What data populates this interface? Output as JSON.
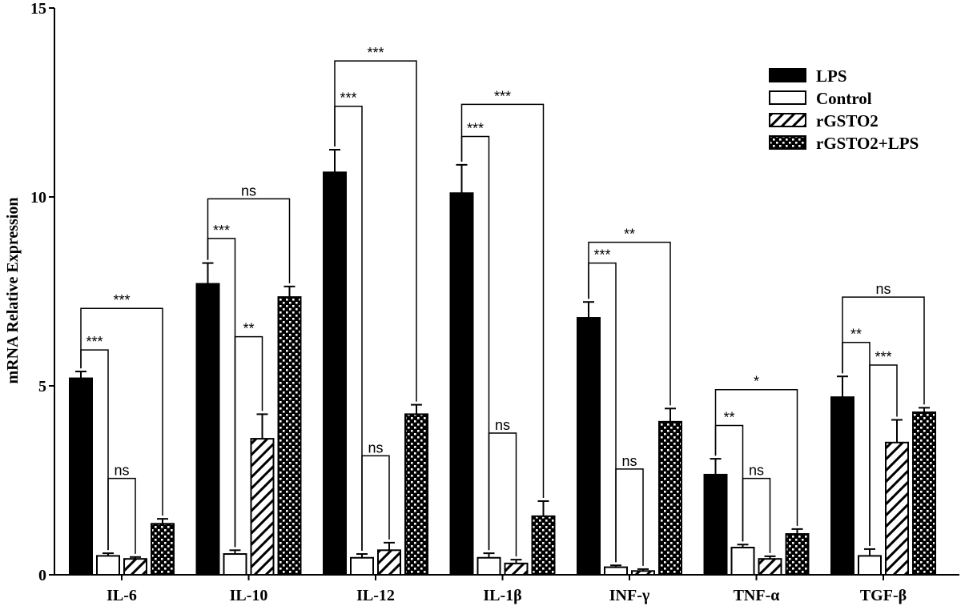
{
  "chart_data": {
    "type": "bar",
    "title": "",
    "xlabel": "",
    "ylabel": "mRNA Relative Expression",
    "ylim": [
      0,
      15
    ],
    "yticks": [
      0,
      5,
      10,
      15
    ],
    "grid": false,
    "legend_position": "top-right",
    "categories": [
      "IL-6",
      "IL-10",
      "IL-12",
      "IL-1β",
      "INF-γ",
      "TNF-α",
      "TGF-β"
    ],
    "series": [
      {
        "name": "LPS",
        "pattern": "solid",
        "color": "#000000",
        "values": [
          5.2,
          7.7,
          10.65,
          10.1,
          6.8,
          2.65,
          4.7
        ],
        "errors": [
          0.18,
          0.55,
          0.6,
          0.75,
          0.42,
          0.42,
          0.55
        ]
      },
      {
        "name": "Control",
        "pattern": "open",
        "color": "#ffffff",
        "values": [
          0.5,
          0.55,
          0.45,
          0.45,
          0.2,
          0.72,
          0.5
        ],
        "errors": [
          0.07,
          0.1,
          0.1,
          0.12,
          0.05,
          0.08,
          0.18
        ]
      },
      {
        "name": "rGSTO2",
        "pattern": "hatched",
        "color": "#ffffff",
        "values": [
          0.42,
          3.6,
          0.65,
          0.3,
          0.1,
          0.42,
          3.5
        ],
        "errors": [
          0.05,
          0.65,
          0.2,
          0.1,
          0.05,
          0.07,
          0.6
        ]
      },
      {
        "name": "rGSTO2+LPS",
        "pattern": "checkered",
        "color": "#000000",
        "values": [
          1.35,
          7.35,
          4.25,
          1.55,
          4.05,
          1.08,
          4.3
        ],
        "errors": [
          0.13,
          0.28,
          0.25,
          0.4,
          0.35,
          0.13,
          0.12
        ]
      }
    ],
    "significance": [
      {
        "category": 0,
        "from": 0,
        "to": 1,
        "level": 5.95,
        "label": "***"
      },
      {
        "category": 0,
        "from": 0,
        "to": 3,
        "level": 7.05,
        "label": "***"
      },
      {
        "category": 0,
        "from": 1,
        "to": 2,
        "level": 2.55,
        "label": "ns"
      },
      {
        "category": 1,
        "from": 0,
        "to": 1,
        "level": 8.9,
        "label": "***"
      },
      {
        "category": 1,
        "from": 0,
        "to": 3,
        "level": 9.95,
        "label": "ns"
      },
      {
        "category": 1,
        "from": 1,
        "to": 2,
        "level": 6.3,
        "label": "**"
      },
      {
        "category": 2,
        "from": 0,
        "to": 1,
        "level": 12.4,
        "label": "***"
      },
      {
        "category": 2,
        "from": 0,
        "to": 3,
        "level": 13.6,
        "label": "***"
      },
      {
        "category": 2,
        "from": 1,
        "to": 2,
        "level": 3.15,
        "label": "ns"
      },
      {
        "category": 3,
        "from": 0,
        "to": 1,
        "level": 11.6,
        "label": "***"
      },
      {
        "category": 3,
        "from": 0,
        "to": 3,
        "level": 12.45,
        "label": "***"
      },
      {
        "category": 3,
        "from": 1,
        "to": 2,
        "level": 3.75,
        "label": "ns"
      },
      {
        "category": 4,
        "from": 0,
        "to": 1,
        "level": 8.25,
        "label": "***"
      },
      {
        "category": 4,
        "from": 0,
        "to": 3,
        "level": 8.8,
        "label": "**"
      },
      {
        "category": 4,
        "from": 1,
        "to": 2,
        "level": 2.8,
        "label": "ns"
      },
      {
        "category": 5,
        "from": 0,
        "to": 1,
        "level": 3.95,
        "label": "**"
      },
      {
        "category": 5,
        "from": 0,
        "to": 3,
        "level": 4.9,
        "label": "*"
      },
      {
        "category": 5,
        "from": 1,
        "to": 2,
        "level": 2.55,
        "label": "ns"
      },
      {
        "category": 6,
        "from": 0,
        "to": 1,
        "level": 6.15,
        "label": "**"
      },
      {
        "category": 6,
        "from": 0,
        "to": 3,
        "level": 7.35,
        "label": "ns"
      },
      {
        "category": 6,
        "from": 1,
        "to": 2,
        "level": 5.55,
        "label": "***"
      }
    ]
  }
}
